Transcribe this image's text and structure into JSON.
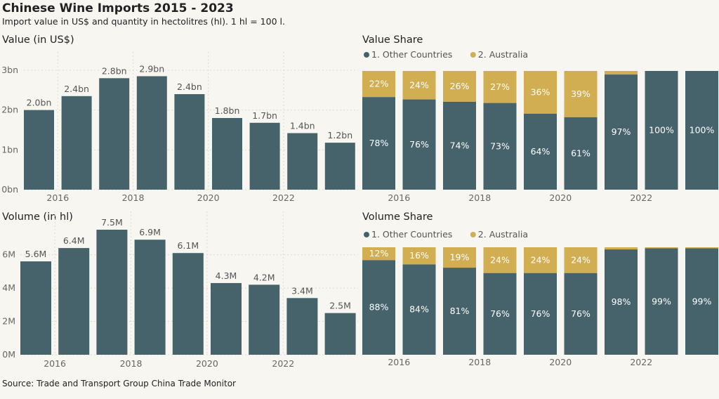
{
  "header": {
    "title": "Chinese Wine Imports 2015 - 2023",
    "subtitle": "Import value in US$ and quantity in hectolitres (hl). 1 hl = 100 l.",
    "source": "Source: Trade and Transport Group China Trade Monitor"
  },
  "colors": {
    "other": "#46636b",
    "australia": "#d1ae52",
    "background": "#f7f6f1"
  },
  "chart_data": [
    {
      "type": "bar",
      "title": "Value (in US$)",
      "categories": [
        2015,
        2016,
        2017,
        2018,
        2019,
        2020,
        2021,
        2022,
        2023
      ],
      "values": [
        2.0,
        2.35,
        2.8,
        2.85,
        2.4,
        1.8,
        1.68,
        1.42,
        1.18
      ],
      "data_labels": [
        "2.0bn",
        "2.4bn",
        "2.8bn",
        "2.9bn",
        "2.4bn",
        "1.8bn",
        "1.7bn",
        "1.4bn",
        "1.2bn"
      ],
      "ylim": [
        0,
        3.0
      ],
      "yticks": [
        0,
        1,
        2,
        3
      ],
      "ytick_labels": [
        "0bn",
        "1bn",
        "2bn",
        "3bn"
      ],
      "xtick_labels": [
        "2016",
        "2018",
        "2020",
        "2022"
      ],
      "xticks": [
        2016,
        2018,
        2020,
        2022
      ],
      "grid": true
    },
    {
      "type": "bar",
      "stacked": true,
      "title": "Value Share",
      "categories": [
        2015,
        2016,
        2017,
        2018,
        2019,
        2020,
        2021,
        2022,
        2023
      ],
      "legend": [
        "1. Other Countries",
        "2. Australia"
      ],
      "legend_position": "top-left",
      "series": [
        {
          "name": "1. Other Countries",
          "values": [
            78,
            76,
            74,
            73,
            64,
            61,
            97,
            100,
            100
          ],
          "labels": [
            "78%",
            "76%",
            "74%",
            "73%",
            "64%",
            "61%",
            "97%",
            "100%",
            "100%"
          ]
        },
        {
          "name": "2. Australia",
          "values": [
            22,
            24,
            26,
            27,
            36,
            39,
            3,
            0,
            0
          ],
          "labels": [
            "22%",
            "24%",
            "26%",
            "27%",
            "36%",
            "39%",
            "",
            "",
            ""
          ]
        }
      ],
      "ylim": [
        0,
        100
      ],
      "xtick_labels": [
        "2016",
        "2018",
        "2020",
        "2022"
      ],
      "xticks": [
        2016,
        2018,
        2020,
        2022
      ]
    },
    {
      "type": "bar",
      "title": "Volume (in hl)",
      "categories": [
        2015,
        2016,
        2017,
        2018,
        2019,
        2020,
        2021,
        2022,
        2023
      ],
      "values": [
        5.6,
        6.4,
        7.5,
        6.9,
        6.1,
        4.3,
        4.2,
        3.4,
        2.5
      ],
      "data_labels": [
        "5.6M",
        "6.4M",
        "7.5M",
        "6.9M",
        "6.1M",
        "4.3M",
        "4.2M",
        "3.4M",
        "2.5M"
      ],
      "ylim": [
        0,
        7.5
      ],
      "yticks": [
        0,
        2,
        4,
        6
      ],
      "ytick_labels": [
        "0M",
        "2M",
        "4M",
        "6M"
      ],
      "xtick_labels": [
        "2016",
        "2018",
        "2020",
        "2022"
      ],
      "xticks": [
        2016,
        2018,
        2020,
        2022
      ],
      "grid": true
    },
    {
      "type": "bar",
      "stacked": true,
      "title": "Volume Share",
      "categories": [
        2015,
        2016,
        2017,
        2018,
        2019,
        2020,
        2021,
        2022,
        2023
      ],
      "legend": [
        "1. Other Countries",
        "2. Australia"
      ],
      "legend_position": "top-left",
      "series": [
        {
          "name": "1. Other Countries",
          "values": [
            88,
            84,
            81,
            76,
            76,
            76,
            98,
            99,
            99
          ],
          "labels": [
            "88%",
            "84%",
            "81%",
            "76%",
            "76%",
            "76%",
            "98%",
            "99%",
            "99%"
          ]
        },
        {
          "name": "2. Australia",
          "values": [
            12,
            16,
            19,
            24,
            24,
            24,
            2,
            1,
            1
          ],
          "labels": [
            "12%",
            "16%",
            "19%",
            "24%",
            "24%",
            "24%",
            "",
            "",
            ""
          ]
        }
      ],
      "ylim": [
        0,
        100
      ],
      "xtick_labels": [
        "2016",
        "2018",
        "2020",
        "2022"
      ],
      "xticks": [
        2016,
        2018,
        2020,
        2022
      ]
    }
  ]
}
